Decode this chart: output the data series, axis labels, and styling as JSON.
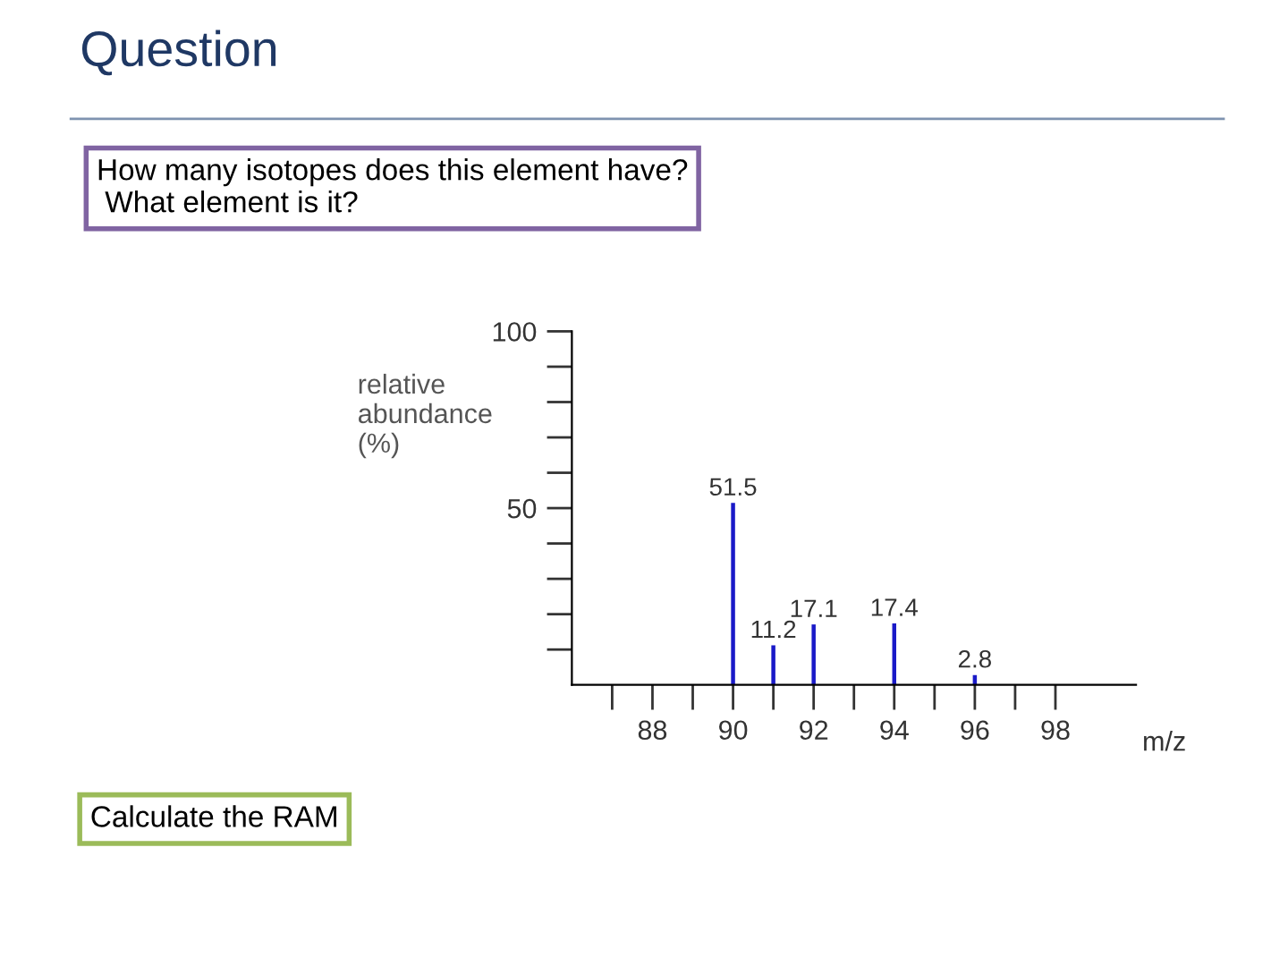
{
  "chart_data": {
    "type": "bar",
    "title": "Question",
    "annotations": [
      "How many isotopes does this element have?\n What element is it?",
      "Calculate the RAM"
    ],
    "xlabel": "m/z",
    "ylabel": "relative\nabundance\n(%)",
    "x": [
      90,
      91,
      92,
      94,
      96
    ],
    "values": [
      51.5,
      11.2,
      17.1,
      17.4,
      2.8
    ],
    "color": "#1a1ac8",
    "data_labels": true,
    "xlim": [
      86,
      100
    ],
    "xticks": [
      {
        "value": 87,
        "label": null
      },
      88,
      {
        "value": 89,
        "label": null
      },
      90,
      {
        "value": 91,
        "label": null
      },
      92,
      {
        "value": 93,
        "label": null
      },
      94,
      {
        "value": 95,
        "label": null
      },
      96,
      {
        "value": 97,
        "label": null
      },
      98
    ],
    "ylim": [
      0,
      100
    ],
    "yticks": [
      {
        "value": 10,
        "label": null
      },
      {
        "value": 20,
        "label": null
      },
      {
        "value": 30,
        "label": null
      },
      {
        "value": 40,
        "label": null
      },
      50,
      {
        "value": 60,
        "label": null
      },
      {
        "value": 70,
        "label": null
      },
      {
        "value": 80,
        "label": null
      },
      {
        "value": 90,
        "label": null
      },
      100
    ],
    "grid": false
  }
}
